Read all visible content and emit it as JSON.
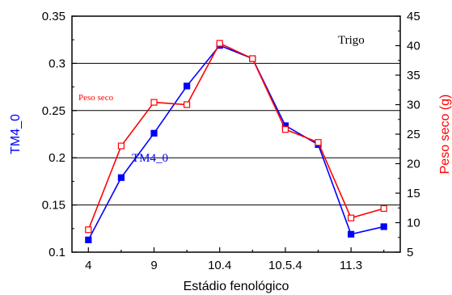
{
  "chart_data": {
    "type": "line",
    "title": "",
    "xlabel": "Estádio fenológico",
    "ylabel": "TM4_0",
    "y2label": "Peso seco (g)",
    "x_tick_labels": [
      "4",
      "9",
      "10.4",
      "10.5.4",
      "11.3"
    ],
    "x_tick_positions": [
      1,
      3,
      5,
      7,
      9
    ],
    "xlim": [
      0.5,
      10.5
    ],
    "ylim": [
      0.1,
      0.35
    ],
    "yticks": [
      "0.1",
      "0.15",
      "0.2",
      "0.25",
      "0.3",
      "0.35"
    ],
    "y2lim": [
      5,
      45
    ],
    "y2ticks": [
      "5",
      "10",
      "15",
      "20",
      "25",
      "30",
      "35",
      "40",
      "45"
    ],
    "horizontal_gridlines_at": [
      0.15,
      0.2,
      0.25,
      0.3
    ],
    "series": [
      {
        "name": "TM4_0",
        "axis": "left",
        "color": "#0000ff",
        "marker": "filled-square",
        "x": [
          1,
          2,
          3,
          4,
          5,
          6,
          7,
          8,
          9,
          10
        ],
        "values": [
          0.113,
          0.179,
          0.226,
          0.276,
          0.319,
          0.305,
          0.234,
          0.214,
          0.119,
          0.127
        ]
      },
      {
        "name": "Peso seco",
        "axis": "right",
        "color": "#ff0000",
        "marker": "open-square",
        "x": [
          1,
          2,
          3,
          4,
          5,
          6,
          7,
          8,
          9,
          10
        ],
        "values": [
          8.8,
          23.0,
          30.4,
          30.0,
          40.4,
          37.8,
          25.8,
          23.6,
          10.8,
          12.4
        ]
      }
    ],
    "annotations": [
      {
        "text": "Trigo",
        "color": "#000000"
      },
      {
        "text": "Peso seco",
        "color": "#ff0000"
      },
      {
        "text": "TM4_0",
        "color": "#0000ff"
      }
    ]
  }
}
